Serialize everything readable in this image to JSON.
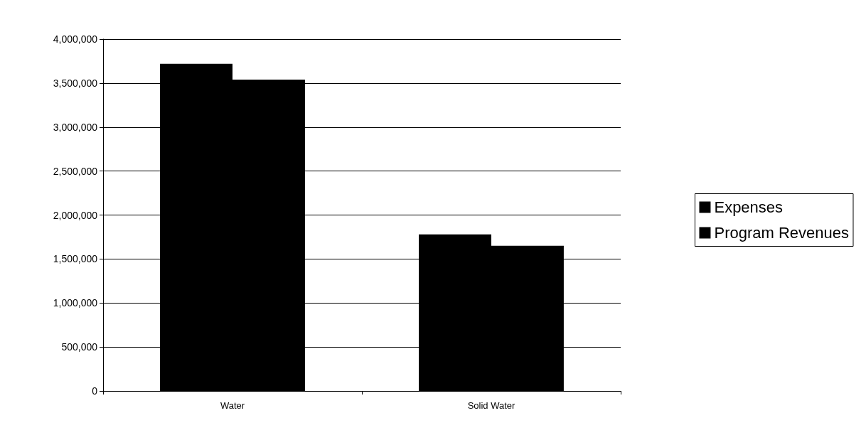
{
  "chart_data": {
    "type": "bar",
    "categories": [
      "Water",
      "Solid Water"
    ],
    "series": [
      {
        "name": "Expenses",
        "color": "#000000",
        "values": [
          3720000,
          1780000
        ]
      },
      {
        "name": "Program Revenues",
        "color": "#000000",
        "values": [
          3540000,
          1650000
        ]
      }
    ],
    "ylim": [
      0,
      4000000
    ],
    "yticks": [
      0,
      {
        "value": 500000,
        "label": "500,000"
      },
      {
        "value": 1000000,
        "label": "1,000,000"
      },
      {
        "value": 1500000,
        "label": "1,500,000"
      },
      {
        "value": 2000000,
        "label": "2,000,000"
      },
      {
        "value": 2500000,
        "label": "2,500,000"
      },
      {
        "value": 3000000,
        "label": "3,000,000"
      },
      {
        "value": 3500000,
        "label": "3,500,000"
      },
      {
        "value": 4000000,
        "label": "4,000,000"
      }
    ],
    "grid": "y",
    "legend": "right"
  }
}
